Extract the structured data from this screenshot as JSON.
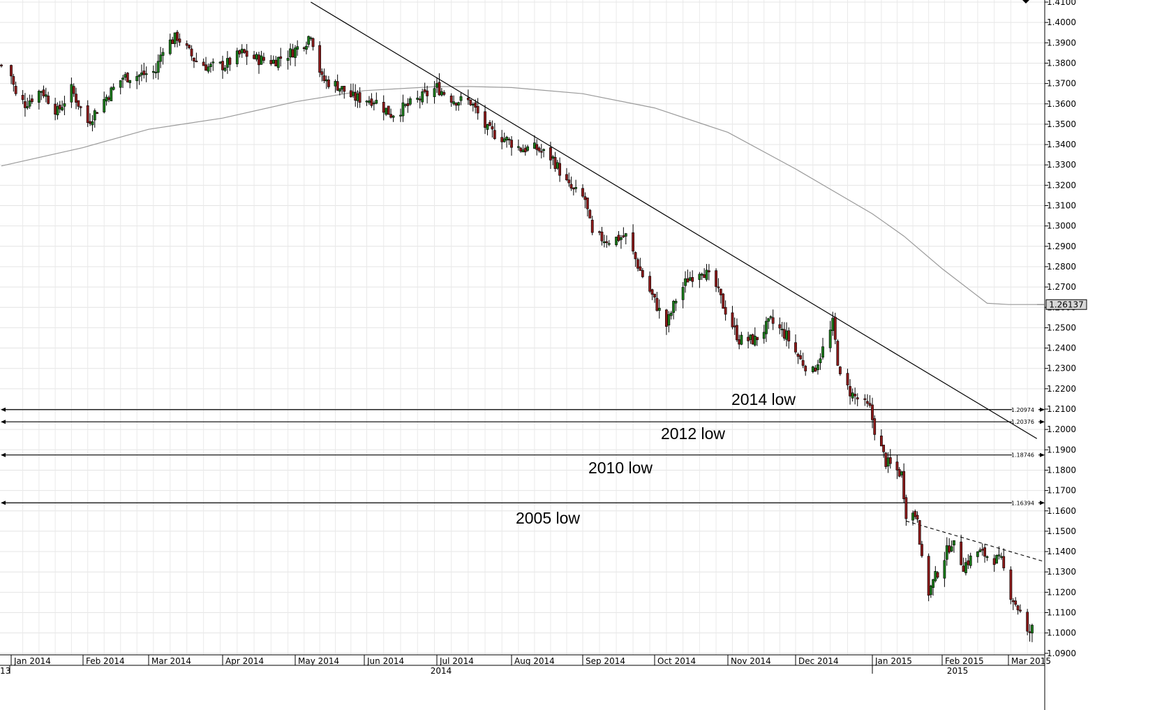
{
  "chart_data": {
    "type": "candlestick",
    "y_axis": {
      "min": 1.09,
      "max": 1.41,
      "position": "right",
      "ticks": [
        "1.0900",
        "1.1000",
        "1.1100",
        "1.1200",
        "1.1300",
        "1.1400",
        "1.1500",
        "1.1600",
        "1.1700",
        "1.1800",
        "1.1900",
        "1.2000",
        "1.2100",
        "1.2200",
        "1.2300",
        "1.2400",
        "1.2500",
        "1.2600",
        "1.2700",
        "1.2800",
        "1.2900",
        "1.3000",
        "1.3100",
        "1.3200",
        "1.3300",
        "1.3400",
        "1.3500",
        "1.3600",
        "1.3700",
        "1.3800",
        "1.3900",
        "1.4000",
        "1.4100"
      ]
    },
    "x_axis": {
      "months": [
        "Jan 2014",
        "Feb 2014",
        "Mar 2014",
        "Apr 2014",
        "May 2014",
        "Jun 2014",
        "Jul 2014",
        "Aug 2014",
        "Sep 2014",
        "Oct 2014",
        "Nov 2014",
        "Dec 2014",
        "Jan 2015",
        "Feb 2015",
        "Mar 2015"
      ],
      "years": [
        "13",
        "2014",
        "2015"
      ]
    },
    "grid": true,
    "current_price": "1.26137",
    "moving_average_last": 1.26137,
    "levels": [
      {
        "value": 1.20974,
        "label": "1.20974",
        "annotation": "2014 low"
      },
      {
        "value": 1.20376,
        "label": "1.20376",
        "annotation": "2012 low"
      },
      {
        "value": 1.18746,
        "label": "1.18746",
        "annotation": "2010 low"
      },
      {
        "value": 1.16394,
        "label": "1.16394",
        "annotation": "2005 low"
      }
    ],
    "trendline": {
      "start_date": "2014-05-08",
      "start_value": 1.41,
      "end_date": "2015-03-13",
      "end_value": 1.1955
    },
    "dashed_trendline": {
      "start_date": "2015-01-16",
      "start_value": 1.155,
      "end_date": "2015-03-13",
      "end_value": 1.135
    },
    "ma_path": [
      [
        "2013-12-31",
        1.3295
      ],
      [
        "2014-02-01",
        1.3385
      ],
      [
        "2014-03-01",
        1.3475
      ],
      [
        "2014-04-01",
        1.353
      ],
      [
        "2014-05-01",
        1.361
      ],
      [
        "2014-06-01",
        1.3665
      ],
      [
        "2014-07-01",
        1.3685
      ],
      [
        "2014-07-15",
        1.3685
      ],
      [
        "2014-08-01",
        1.368
      ],
      [
        "2014-09-01",
        1.365
      ],
      [
        "2014-10-01",
        1.358
      ],
      [
        "2014-11-01",
        1.346
      ],
      [
        "2014-12-01",
        1.328
      ],
      [
        "2015-01-01",
        1.306
      ],
      [
        "2015-01-15",
        1.295
      ],
      [
        "2015-02-01",
        1.279
      ],
      [
        "2015-02-20",
        1.262
      ],
      [
        "2015-03-01",
        1.2614
      ],
      [
        "2015-03-13",
        1.2614
      ]
    ],
    "price_path": [
      [
        "2013-12-31",
        1.379
      ],
      [
        "2014-01-03",
        1.364
      ],
      [
        "2014-01-07",
        1.36
      ],
      [
        "2014-01-14",
        1.367
      ],
      [
        "2014-01-21",
        1.356
      ],
      [
        "2014-01-27",
        1.367
      ],
      [
        "2014-02-03",
        1.351
      ],
      [
        "2014-02-10",
        1.362
      ],
      [
        "2014-02-18",
        1.373
      ],
      [
        "2014-02-25",
        1.374
      ],
      [
        "2014-03-04",
        1.376
      ],
      [
        "2014-03-07",
        1.388
      ],
      [
        "2014-03-13",
        1.393
      ],
      [
        "2014-03-20",
        1.382
      ],
      [
        "2014-03-26",
        1.378
      ],
      [
        "2014-04-02",
        1.379
      ],
      [
        "2014-04-09",
        1.385
      ],
      [
        "2014-04-15",
        1.382
      ],
      [
        "2014-04-22",
        1.381
      ],
      [
        "2014-04-29",
        1.385
      ],
      [
        "2014-05-06",
        1.391
      ],
      [
        "2014-05-08",
        1.395
      ],
      [
        "2014-05-13",
        1.372
      ],
      [
        "2014-05-20",
        1.369
      ],
      [
        "2014-05-27",
        1.363
      ],
      [
        "2014-06-05",
        1.362
      ],
      [
        "2014-06-12",
        1.355
      ],
      [
        "2014-06-19",
        1.359
      ],
      [
        "2014-06-26",
        1.364
      ],
      [
        "2014-07-01",
        1.368
      ],
      [
        "2014-07-08",
        1.362
      ],
      [
        "2014-07-15",
        1.361
      ],
      [
        "2014-07-22",
        1.347
      ],
      [
        "2014-07-29",
        1.343
      ],
      [
        "2014-08-05",
        1.338
      ],
      [
        "2014-08-12",
        1.338
      ],
      [
        "2014-08-19",
        1.333
      ],
      [
        "2014-08-26",
        1.319
      ],
      [
        "2014-09-02",
        1.313
      ],
      [
        "2014-09-05",
        1.295
      ],
      [
        "2014-09-12",
        1.293
      ],
      [
        "2014-09-19",
        1.295
      ],
      [
        "2014-09-25",
        1.278
      ],
      [
        "2014-10-01",
        1.263
      ],
      [
        "2014-10-06",
        1.251
      ],
      [
        "2014-10-10",
        1.264
      ],
      [
        "2014-10-15",
        1.274
      ],
      [
        "2014-10-21",
        1.279
      ],
      [
        "2014-10-27",
        1.27
      ],
      [
        "2014-10-30",
        1.261
      ],
      [
        "2014-11-06",
        1.244
      ],
      [
        "2014-11-13",
        1.244
      ],
      [
        "2014-11-20",
        1.253
      ],
      [
        "2014-11-27",
        1.246
      ],
      [
        "2014-12-03",
        1.234
      ],
      [
        "2014-12-08",
        1.228
      ],
      [
        "2014-12-15",
        1.248
      ],
      [
        "2014-12-16",
        1.252
      ],
      [
        "2014-12-19",
        1.225
      ],
      [
        "2014-12-24",
        1.217
      ],
      [
        "2014-12-31",
        1.21
      ],
      [
        "2015-01-02",
        1.2
      ],
      [
        "2015-01-07",
        1.184
      ],
      [
        "2015-01-14",
        1.178
      ],
      [
        "2015-01-16",
        1.159
      ],
      [
        "2015-01-21",
        1.158
      ],
      [
        "2015-01-23",
        1.135
      ],
      [
        "2015-01-26",
        1.12
      ],
      [
        "2015-01-30",
        1.13
      ],
      [
        "2015-02-05",
        1.145
      ],
      [
        "2015-02-10",
        1.133
      ],
      [
        "2015-02-16",
        1.14
      ],
      [
        "2015-02-20",
        1.138
      ],
      [
        "2015-02-26",
        1.135
      ],
      [
        "2015-03-02",
        1.119
      ],
      [
        "2015-03-06",
        1.11
      ],
      [
        "2015-03-09",
        1.099
      ],
      [
        "2015-03-11",
        1.102
      ]
    ]
  }
}
